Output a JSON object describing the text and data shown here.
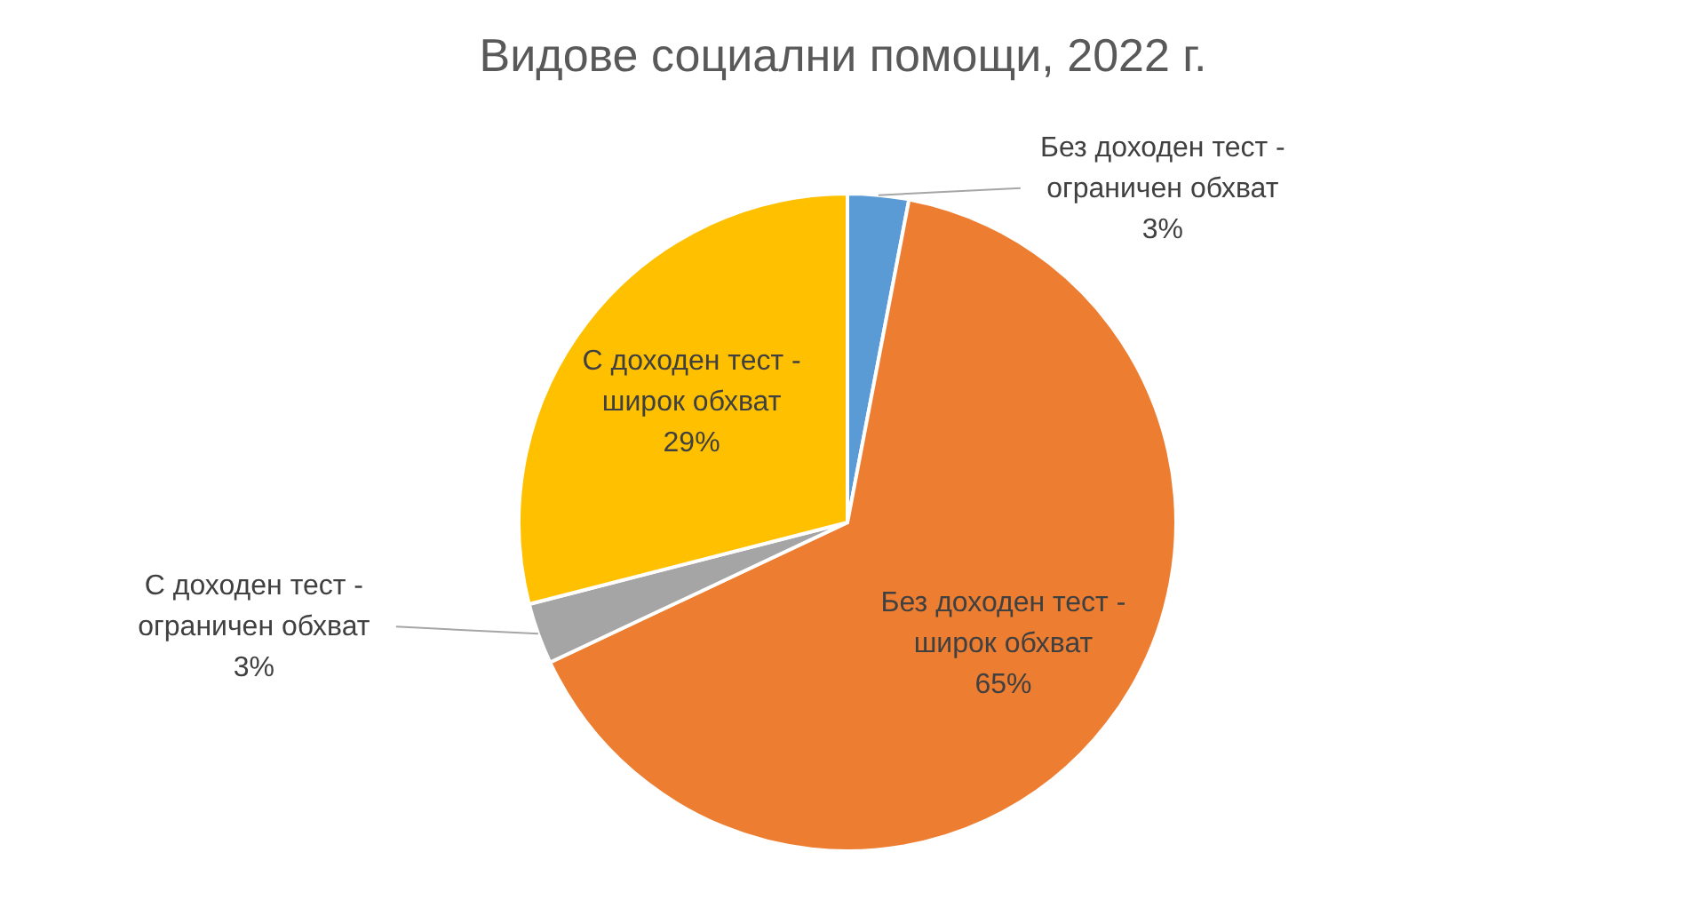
{
  "chart_data": {
    "type": "pie",
    "title": "Видове социални помощи, 2022 г.",
    "categories": [
      "Без доходен тест - ограничен обхват",
      "Без доходен тест - широк обхват",
      "С доходен тест - ограничен обхват",
      "С доходен тест - широк обхват"
    ],
    "values": [
      3,
      65,
      3,
      29
    ],
    "value_labels": [
      "3%",
      "65%",
      "3%",
      "29%"
    ],
    "colors": [
      "#5b9bd5",
      "#ed7d31",
      "#a5a5a5",
      "#ffc000"
    ]
  }
}
